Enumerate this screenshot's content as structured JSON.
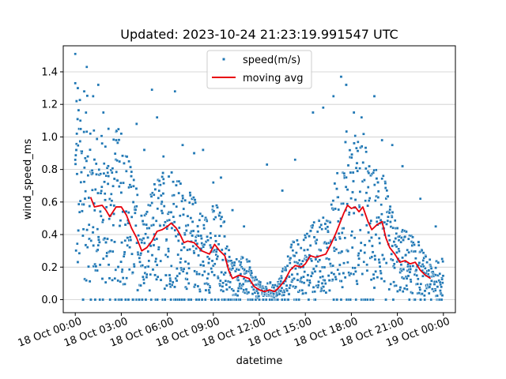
{
  "chart_data": {
    "type": "scatter",
    "title": "Updated: 2023-10-24 21:23:19.991547 UTC",
    "xlabel": "datetime",
    "ylabel": "wind_speed_ms",
    "xlim": [
      "2023-10-17 23:13",
      "2023-10-19 00:47"
    ],
    "ylim": [
      -0.08,
      1.56
    ],
    "x_ticks": [
      {
        "value": "2023-10-18 00:00",
        "label": "18 Oct 00:00"
      },
      {
        "value": "2023-10-18 03:00",
        "label": "18 Oct 03:00"
      },
      {
        "value": "2023-10-18 06:00",
        "label": "18 Oct 06:00"
      },
      {
        "value": "2023-10-18 09:00",
        "label": "18 Oct 09:00"
      },
      {
        "value": "2023-10-18 12:00",
        "label": "18 Oct 12:00"
      },
      {
        "value": "2023-10-18 15:00",
        "label": "18 Oct 15:00"
      },
      {
        "value": "2023-10-18 18:00",
        "label": "18 Oct 18:00"
      },
      {
        "value": "2023-10-18 21:00",
        "label": "18 Oct 21:00"
      },
      {
        "value": "2023-10-19 00:00",
        "label": "19 Oct 00:00"
      }
    ],
    "y_ticks": [
      {
        "value": 0.0,
        "label": "0.0"
      },
      {
        "value": 0.2,
        "label": "0.2"
      },
      {
        "value": 0.4,
        "label": "0.4"
      },
      {
        "value": 0.6,
        "label": "0.6"
      },
      {
        "value": 0.8,
        "label": "0.8"
      },
      {
        "value": 1.0,
        "label": "1.0"
      },
      {
        "value": 1.2,
        "label": "1.2"
      },
      {
        "value": 1.4,
        "label": "1.4"
      }
    ],
    "grid": {
      "y": true,
      "x": false
    },
    "legend_position": "top-center",
    "series": [
      {
        "name": "speed(m/s)",
        "kind": "scatter",
        "color": "#1f77b4",
        "note_points": "dense ~1-minute scatter; representative estimated points",
        "points": [
          [
            "2023-10-18 00:00",
            1.51
          ],
          [
            "2023-10-18 00:00",
            1.33
          ],
          [
            "2023-10-18 00:10",
            1.3
          ],
          [
            "2023-10-18 00:05",
            1.22
          ],
          [
            "2023-10-18 00:20",
            1.1
          ],
          [
            "2023-10-18 00:35",
            1.28
          ],
          [
            "2023-10-18 00:45",
            1.43
          ],
          [
            "2023-10-18 01:10",
            1.25
          ],
          [
            "2023-10-18 01:30",
            1.32
          ],
          [
            "2023-10-18 01:50",
            1.15
          ],
          [
            "2023-10-18 02:10",
            1.05
          ],
          [
            "2023-10-18 02:40",
            0.98
          ],
          [
            "2023-10-18 03:00",
            1.02
          ],
          [
            "2023-10-18 03:30",
            0.85
          ],
          [
            "2023-10-18 04:00",
            1.08
          ],
          [
            "2023-10-18 04:30",
            0.92
          ],
          [
            "2023-10-18 05:00",
            1.29
          ],
          [
            "2023-10-18 05:20",
            1.12
          ],
          [
            "2023-10-18 05:45",
            0.88
          ],
          [
            "2023-10-18 06:30",
            1.28
          ],
          [
            "2023-10-18 07:00",
            0.95
          ],
          [
            "2023-10-18 07:45",
            0.9
          ],
          [
            "2023-10-18 08:20",
            0.92
          ],
          [
            "2023-10-18 09:00",
            0.72
          ],
          [
            "2023-10-18 09:30",
            0.75
          ],
          [
            "2023-10-18 10:15",
            0.55
          ],
          [
            "2023-10-18 11:00",
            0.45
          ],
          [
            "2023-10-18 12:30",
            0.83
          ],
          [
            "2023-10-18 13:30",
            0.67
          ],
          [
            "2023-10-18 14:20",
            0.86
          ],
          [
            "2023-10-18 15:30",
            1.15
          ],
          [
            "2023-10-18 16:10",
            1.18
          ],
          [
            "2023-10-18 16:50",
            1.25
          ],
          [
            "2023-10-18 17:20",
            1.37
          ],
          [
            "2023-10-18 17:40",
            1.32
          ],
          [
            "2023-10-18 18:10",
            1.15
          ],
          [
            "2023-10-18 18:40",
            1.12
          ],
          [
            "2023-10-18 19:30",
            1.25
          ],
          [
            "2023-10-18 20:00",
            0.98
          ],
          [
            "2023-10-18 20:40",
            0.95
          ],
          [
            "2023-10-18 21:20",
            0.82
          ],
          [
            "2023-10-18 22:30",
            0.62
          ],
          [
            "2023-10-18 23:30",
            0.45
          ],
          [
            "2023-10-18 23:55",
            0.25
          ]
        ]
      },
      {
        "name": "moving avg",
        "kind": "line",
        "color": "#e8000b",
        "points": [
          [
            "2023-10-18 01:00",
            0.63
          ],
          [
            "2023-10-18 01:15",
            0.57
          ],
          [
            "2023-10-18 01:45",
            0.58
          ],
          [
            "2023-10-18 02:00",
            0.55
          ],
          [
            "2023-10-18 02:15",
            0.51
          ],
          [
            "2023-10-18 02:40",
            0.57
          ],
          [
            "2023-10-18 03:00",
            0.57
          ],
          [
            "2023-10-18 03:20",
            0.52
          ],
          [
            "2023-10-18 03:40",
            0.44
          ],
          [
            "2023-10-18 04:00",
            0.38
          ],
          [
            "2023-10-18 04:20",
            0.3
          ],
          [
            "2023-10-18 04:40",
            0.32
          ],
          [
            "2023-10-18 05:00",
            0.36
          ],
          [
            "2023-10-18 05:20",
            0.42
          ],
          [
            "2023-10-18 05:40",
            0.43
          ],
          [
            "2023-10-18 06:00",
            0.45
          ],
          [
            "2023-10-18 06:15",
            0.47
          ],
          [
            "2023-10-18 06:35",
            0.44
          ],
          [
            "2023-10-18 06:50",
            0.4
          ],
          [
            "2023-10-18 07:05",
            0.35
          ],
          [
            "2023-10-18 07:20",
            0.36
          ],
          [
            "2023-10-18 07:45",
            0.35
          ],
          [
            "2023-10-18 08:15",
            0.3
          ],
          [
            "2023-10-18 08:45",
            0.28
          ],
          [
            "2023-10-18 09:05",
            0.34
          ],
          [
            "2023-10-18 09:25",
            0.3
          ],
          [
            "2023-10-18 09:45",
            0.27
          ],
          [
            "2023-10-18 10:00",
            0.18
          ],
          [
            "2023-10-18 10:15",
            0.13
          ],
          [
            "2023-10-18 10:40",
            0.15
          ],
          [
            "2023-10-18 11:00",
            0.14
          ],
          [
            "2023-10-18 11:20",
            0.13
          ],
          [
            "2023-10-18 11:40",
            0.08
          ],
          [
            "2023-10-18 12:00",
            0.06
          ],
          [
            "2023-10-18 12:20",
            0.05
          ],
          [
            "2023-10-18 12:40",
            0.06
          ],
          [
            "2023-10-18 13:00",
            0.05
          ],
          [
            "2023-10-18 13:20",
            0.08
          ],
          [
            "2023-10-18 13:40",
            0.12
          ],
          [
            "2023-10-18 14:00",
            0.18
          ],
          [
            "2023-10-18 14:20",
            0.21
          ],
          [
            "2023-10-18 14:45",
            0.2
          ],
          [
            "2023-10-18 15:00",
            0.22
          ],
          [
            "2023-10-18 15:20",
            0.27
          ],
          [
            "2023-10-18 15:40",
            0.26
          ],
          [
            "2023-10-18 16:00",
            0.27
          ],
          [
            "2023-10-18 16:20",
            0.28
          ],
          [
            "2023-10-18 16:40",
            0.34
          ],
          [
            "2023-10-18 17:00",
            0.41
          ],
          [
            "2023-10-18 17:15",
            0.47
          ],
          [
            "2023-10-18 17:30",
            0.53
          ],
          [
            "2023-10-18 17:45",
            0.58
          ],
          [
            "2023-10-18 18:00",
            0.56
          ],
          [
            "2023-10-18 18:15",
            0.57
          ],
          [
            "2023-10-18 18:30",
            0.54
          ],
          [
            "2023-10-18 18:45",
            0.57
          ],
          [
            "2023-10-18 19:05",
            0.48
          ],
          [
            "2023-10-18 19:20",
            0.43
          ],
          [
            "2023-10-18 19:40",
            0.46
          ],
          [
            "2023-10-18 20:00",
            0.48
          ],
          [
            "2023-10-18 20:15",
            0.38
          ],
          [
            "2023-10-18 20:30",
            0.32
          ],
          [
            "2023-10-18 20:50",
            0.28
          ],
          [
            "2023-10-18 21:10",
            0.23
          ],
          [
            "2023-10-18 21:30",
            0.24
          ],
          [
            "2023-10-18 21:50",
            0.22
          ],
          [
            "2023-10-18 22:10",
            0.23
          ],
          [
            "2023-10-18 22:30",
            0.18
          ],
          [
            "2023-10-18 22:50",
            0.15
          ],
          [
            "2023-10-18 23:00",
            0.14
          ],
          [
            "2023-10-18 23:10",
            0.13
          ]
        ]
      }
    ]
  }
}
